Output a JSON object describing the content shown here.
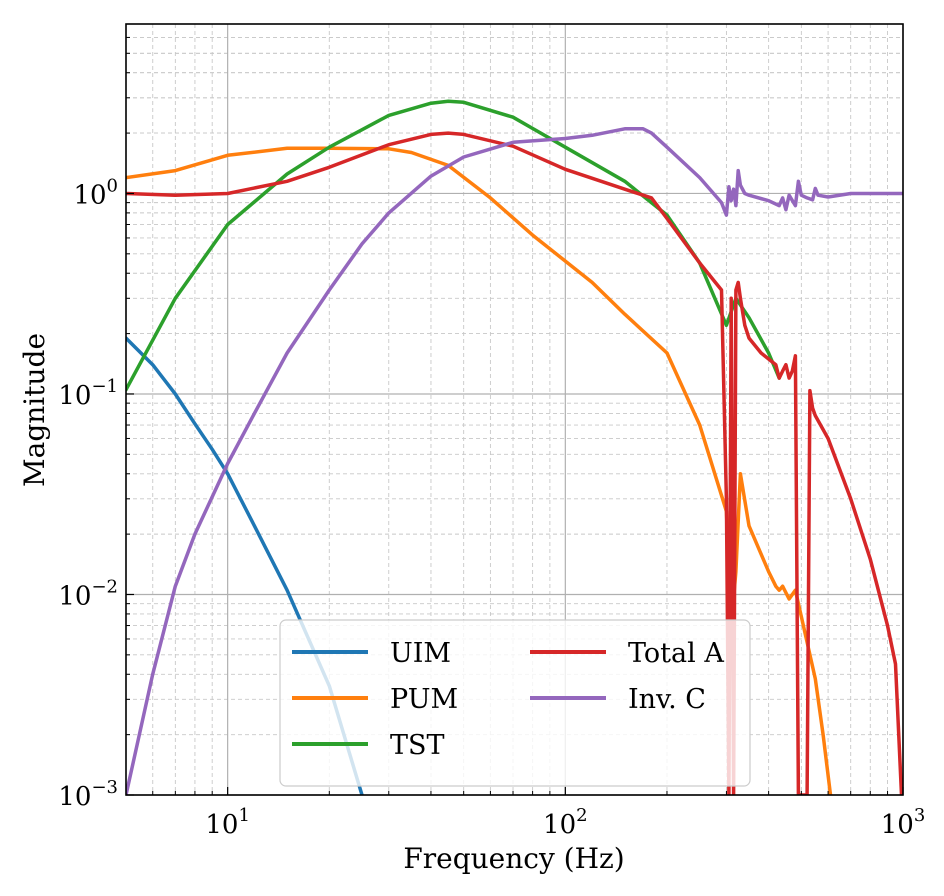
{
  "chart_data": {
    "type": "line",
    "title": "",
    "xlabel": "Frequency (Hz)",
    "ylabel": "Magnitude",
    "xscale": "log",
    "yscale": "log",
    "xlim": [
      5,
      1000
    ],
    "ylim": [
      0.001,
      7
    ],
    "grid": true,
    "legend_position": "bottom-center",
    "x_ticks": [
      {
        "value": 10,
        "base": "10",
        "exp": "1"
      },
      {
        "value": 100,
        "base": "10",
        "exp": "2"
      },
      {
        "value": 1000,
        "base": "10",
        "exp": "3"
      }
    ],
    "y_ticks": [
      {
        "value": 0.001,
        "base": "10",
        "exp": "−3"
      },
      {
        "value": 0.01,
        "base": "10",
        "exp": "−2"
      },
      {
        "value": 0.1,
        "base": "10",
        "exp": "−1"
      },
      {
        "value": 1,
        "base": "10",
        "exp": "0"
      }
    ],
    "series": [
      {
        "name": "UIM",
        "color": "#1f77b4",
        "x": [
          5,
          6,
          7,
          8,
          9,
          10,
          12,
          15,
          20,
          25
        ],
        "y": [
          0.19,
          0.14,
          0.1,
          0.071,
          0.053,
          0.04,
          0.022,
          0.0105,
          0.0035,
          0.001
        ]
      },
      {
        "name": "PUM",
        "color": "#ff7f0e",
        "x": [
          5,
          7,
          10,
          15,
          20,
          30,
          35,
          45,
          60,
          80,
          120,
          150,
          200,
          250,
          300,
          310,
          320,
          330,
          350,
          400,
          420,
          430,
          440,
          460,
          480,
          550,
          580,
          610
        ],
        "y": [
          1.2,
          1.3,
          1.55,
          1.68,
          1.68,
          1.67,
          1.6,
          1.38,
          0.95,
          0.62,
          0.36,
          0.25,
          0.16,
          0.07,
          0.026,
          0.007,
          0.013,
          0.04,
          0.022,
          0.013,
          0.011,
          0.0105,
          0.011,
          0.0095,
          0.0105,
          0.0038,
          0.002,
          0.001
        ]
      },
      {
        "name": "TST",
        "color": "#2ca02c",
        "x": [
          5,
          7,
          10,
          15,
          20,
          30,
          40,
          45,
          50,
          70,
          100,
          150,
          200,
          250,
          300,
          320,
          350,
          400,
          430
        ],
        "y": [
          0.105,
          0.3,
          0.7,
          1.25,
          1.7,
          2.45,
          2.82,
          2.88,
          2.85,
          2.4,
          1.7,
          1.15,
          0.78,
          0.45,
          0.22,
          0.3,
          0.24,
          0.16,
          0.12
        ]
      },
      {
        "name": "Total A",
        "color": "#d62728",
        "x": [
          5,
          7,
          10,
          15,
          20,
          30,
          40,
          45,
          50,
          70,
          100,
          150,
          180,
          200,
          250,
          290,
          300,
          305,
          310,
          315,
          320,
          325,
          330,
          340,
          350,
          380,
          420,
          430,
          440,
          450,
          460,
          470,
          480,
          490,
          500,
          520,
          530,
          540,
          550,
          600,
          700,
          800,
          900,
          950,
          990
        ],
        "y": [
          1.0,
          0.98,
          1.0,
          1.15,
          1.35,
          1.75,
          1.97,
          2.0,
          1.97,
          1.72,
          1.32,
          1.05,
          0.95,
          0.75,
          0.45,
          0.33,
          0.03,
          0.001,
          0.3,
          0.001,
          0.33,
          0.36,
          0.3,
          0.22,
          0.19,
          0.16,
          0.14,
          0.12,
          0.13,
          0.14,
          0.12,
          0.13,
          0.155,
          0.001,
          0.001,
          0.001,
          0.104,
          0.085,
          0.078,
          0.06,
          0.03,
          0.015,
          0.007,
          0.0045,
          0.001
        ]
      },
      {
        "name": "Inv. C",
        "color": "#9467bd",
        "x": [
          5,
          6,
          7,
          8,
          10,
          12,
          15,
          20,
          25,
          30,
          40,
          50,
          70,
          100,
          120,
          150,
          170,
          180,
          200,
          250,
          290,
          300,
          305,
          310,
          315,
          320,
          325,
          330,
          340,
          350,
          400,
          430,
          440,
          450,
          460,
          480,
          490,
          500,
          520,
          540,
          550,
          560,
          600,
          700,
          800,
          900,
          1000
        ],
        "y": [
          0.001,
          0.004,
          0.011,
          0.02,
          0.045,
          0.08,
          0.16,
          0.33,
          0.56,
          0.8,
          1.22,
          1.52,
          1.8,
          1.88,
          1.95,
          2.1,
          2.1,
          2.0,
          1.7,
          1.2,
          0.9,
          0.78,
          1.08,
          0.92,
          1.05,
          0.87,
          1.3,
          1.1,
          1.0,
          0.98,
          0.92,
          0.87,
          0.95,
          0.83,
          0.98,
          0.87,
          1.15,
          0.98,
          0.95,
          0.93,
          1.06,
          0.98,
          0.96,
          1.0,
          1.0,
          1.0,
          1.0
        ]
      }
    ],
    "legend": {
      "columns": [
        [
          "UIM",
          "PUM",
          "TST"
        ],
        [
          "Total A",
          "Inv. C"
        ]
      ]
    }
  }
}
